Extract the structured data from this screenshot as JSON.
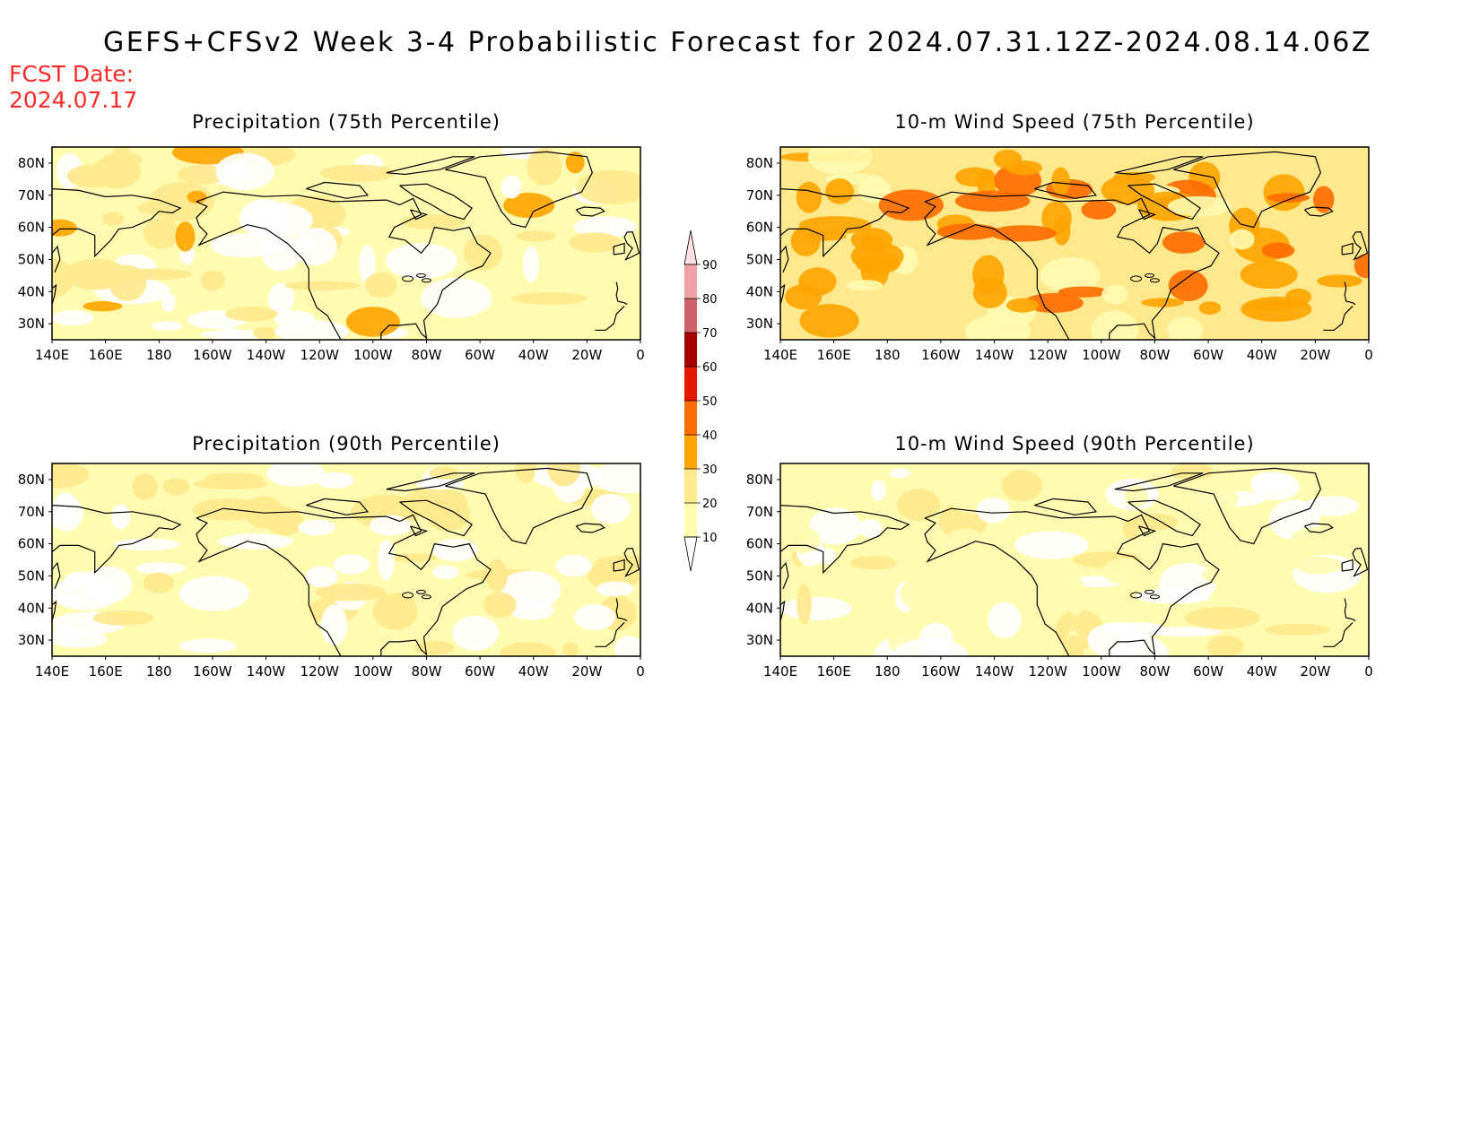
{
  "title": "GEFS+CFSv2 Week 3-4 Probabilistic Forecast for 2024.07.31.12Z-2024.08.14.06Z",
  "fcst_date": {
    "line1": "FCST Date:",
    "line2": "2024.07.17"
  },
  "panels": [
    {
      "id": "precip-75",
      "title": "Precipitation (75th Percentile)",
      "base_level": 20
    },
    {
      "id": "wind-75",
      "title": "10-m Wind Speed (75th Percentile)",
      "base_level": 30
    },
    {
      "id": "precip-90",
      "title": "Precipitation (90th Percentile)",
      "base_level": 10
    },
    {
      "id": "wind-90",
      "title": "10-m Wind Speed (90th Percentile)",
      "base_level": 10
    }
  ],
  "axes": {
    "x_ticks": [
      "140E",
      "160E",
      "180",
      "160W",
      "140W",
      "120W",
      "100W",
      "80W",
      "60W",
      "40W",
      "20W",
      "0"
    ],
    "y_ticks": [
      "80N",
      "70N",
      "60N",
      "50N",
      "40N",
      "30N"
    ],
    "x_range_deg": [
      140,
      360
    ],
    "y_range_deg": [
      25,
      85
    ]
  },
  "colorbar": {
    "levels": [
      "10",
      "20",
      "30",
      "40",
      "50",
      "60",
      "70",
      "80",
      "90"
    ],
    "colors": [
      "#fffbb0",
      "#ffe98c",
      "#ffa400",
      "#ff6c00",
      "#e41a00",
      "#a80000",
      "#d0616a",
      "#f0a2a8",
      "#ffe0e4"
    ]
  },
  "colors": {
    "fcst_date": "#ff2a2a",
    "coastline": "#000000"
  }
}
